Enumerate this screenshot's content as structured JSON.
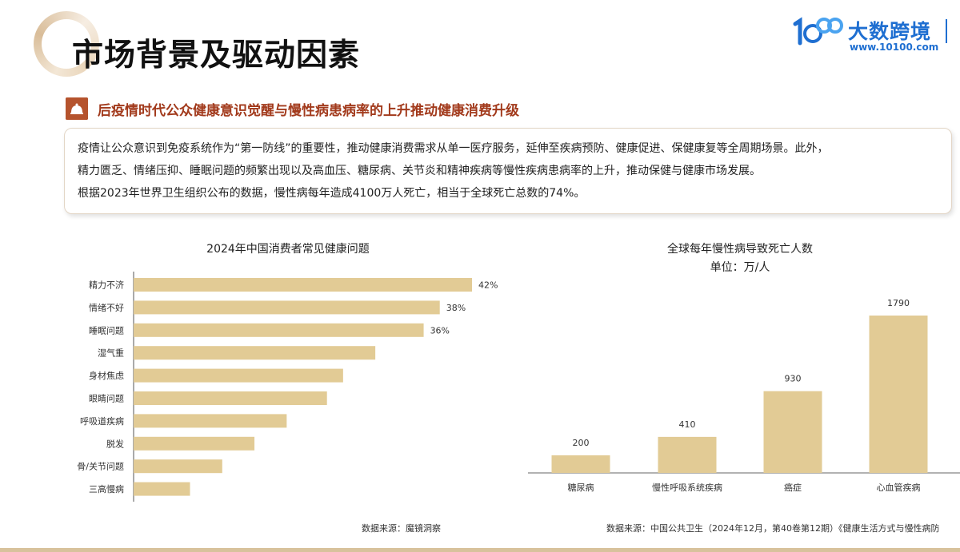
{
  "header": {
    "title": "市场背景及驱动因素",
    "logo_text": "大数跨境",
    "logo_url": "www.10100.com"
  },
  "section": {
    "subtitle": "后疫情时代公众健康意识觉醒与慢性病患病率的上升推动健康消费升级",
    "paragraphs": [
      "疫情让公众意识到免疫系统作为“第一防线”的重要性，推动健康消费需求从单一医疗服务，延伸至疾病预防、健康促进、保健康复等全周期场景。此外，",
      "精力匮乏、情绪压抑、睡眠问题的频繁出现以及高血压、糖尿病、关节炎和精神疾病等慢性疾病患病率的上升，推动保健与健康市场发展。",
      "根据2023年世界卫生组织公布的数据，慢性病每年造成4100万人死亡，相当于全球死亡总数的74%。"
    ]
  },
  "colors": {
    "bar": "#e2cb95",
    "accent": "#a23a1c",
    "brand": "#1f6fd1"
  },
  "chart_data": [
    {
      "type": "bar",
      "orientation": "horizontal",
      "title": "2024年中国消费者常见健康问题",
      "categories": [
        "精力不济",
        "情绪不好",
        "睡眠问题",
        "湿气重",
        "身材焦虑",
        "眼睛问题",
        "呼吸道疾病",
        "脱发",
        "骨/关节问题",
        "三高慢病"
      ],
      "values": [
        42,
        38,
        36,
        30,
        26,
        24,
        19,
        15,
        11,
        7
      ],
      "value_labels": [
        "42%",
        "38%",
        "36%",
        "",
        "",
        "",
        "",
        "",
        "",
        ""
      ],
      "xlim": [
        0,
        42
      ],
      "source": "数据来源：魔镜洞察"
    },
    {
      "type": "bar",
      "title": "全球每年慢性病导致死亡人数",
      "subtitle": "单位：万/人",
      "categories": [
        "糖尿病",
        "慢性呼吸系统疾病",
        "癌症",
        "心血管疾病"
      ],
      "values": [
        200,
        410,
        930,
        1790
      ],
      "ylim": [
        0,
        1790
      ],
      "source": "数据来源：中国公共卫生（2024年12月，第40卷第12期）《健康生活方式与慢性病防"
    }
  ]
}
